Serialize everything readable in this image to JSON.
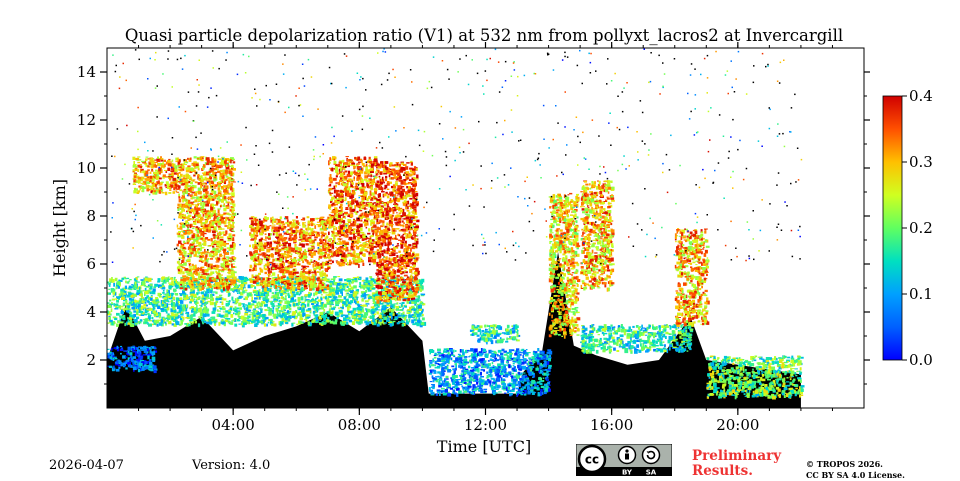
{
  "chart_data": {
    "type": "heatmap",
    "title": "Quasi particle depolarization ratio (V1) at 532 nm from pollyxt_lacros2 at Invercargill",
    "xlabel": "Time [UTC]",
    "ylabel": "Height [km]",
    "xlim": [
      0,
      24
    ],
    "ylim": [
      0,
      15
    ],
    "x_ticks": [
      {
        "value": 4,
        "label": "04:00"
      },
      {
        "value": 8,
        "label": "08:00"
      },
      {
        "value": 12,
        "label": "12:00"
      },
      {
        "value": 16,
        "label": "16:00"
      },
      {
        "value": 20,
        "label": "20:00"
      }
    ],
    "y_ticks": [
      {
        "value": 2,
        "label": "2"
      },
      {
        "value": 4,
        "label": "4"
      },
      {
        "value": 6,
        "label": "6"
      },
      {
        "value": 8,
        "label": "8"
      },
      {
        "value": 10,
        "label": "10"
      },
      {
        "value": 12,
        "label": "12"
      },
      {
        "value": 14,
        "label": "14"
      }
    ],
    "colorbar": {
      "min": 0.0,
      "max": 0.4,
      "colormap": "jet",
      "ticks": [
        {
          "value": 0.0,
          "label": "0.0"
        },
        {
          "value": 0.1,
          "label": "0.1"
        },
        {
          "value": 0.2,
          "label": "0.2"
        },
        {
          "value": 0.3,
          "label": "0.3"
        },
        {
          "value": 0.4,
          "label": "0.4"
        }
      ]
    },
    "data_end_hour": 22.0,
    "low_signal_mask": [
      [
        0,
        2.0
      ],
      [
        0.6,
        4.3
      ],
      [
        1.2,
        2.8
      ],
      [
        2,
        3.0
      ],
      [
        3,
        3.8
      ],
      [
        4,
        2.4
      ],
      [
        5,
        3.0
      ],
      [
        6,
        3.4
      ],
      [
        7,
        4.0
      ],
      [
        8,
        3.2
      ],
      [
        9,
        4.2
      ],
      [
        10,
        2.8
      ],
      [
        10.2,
        0.6
      ],
      [
        11,
        0.6
      ],
      [
        12,
        0.6
      ],
      [
        13,
        0.6
      ],
      [
        13.2,
        1.5
      ],
      [
        13.8,
        2.4
      ],
      [
        14.3,
        6.5
      ],
      [
        14.8,
        2.6
      ],
      [
        15.5,
        2.2
      ],
      [
        16.5,
        1.8
      ],
      [
        17.5,
        2.0
      ],
      [
        18.5,
        3.8
      ],
      [
        19,
        2.0
      ],
      [
        20,
        1.8
      ],
      [
        21,
        1.6
      ],
      [
        22,
        1.4
      ]
    ],
    "features": [
      {
        "name": "boundary layer aerosol",
        "t0": 0.0,
        "t1": 1.5,
        "z0": 1.6,
        "z1": 2.6,
        "value": 0.06
      },
      {
        "name": "low cloud layer",
        "t0": 0.0,
        "t1": 10.0,
        "z0": 3.5,
        "z1": 5.5,
        "value": 0.18
      },
      {
        "name": "cirrus 01-02",
        "t0": 0.8,
        "t1": 2.2,
        "z0": 9.0,
        "z1": 10.5,
        "value": 0.3
      },
      {
        "name": "cirrus 02-04",
        "t0": 2.2,
        "t1": 4.0,
        "z0": 5.0,
        "z1": 10.5,
        "value": 0.3
      },
      {
        "name": "convective cloud 05-07",
        "t0": 4.5,
        "t1": 7.0,
        "z0": 5.0,
        "z1": 8.0,
        "value": 0.32
      },
      {
        "name": "cirrus 07-08",
        "t0": 7.0,
        "t1": 8.5,
        "z0": 6.0,
        "z1": 10.5,
        "value": 0.33
      },
      {
        "name": "cirrus 08-10",
        "t0": 8.5,
        "t1": 9.8,
        "z0": 4.5,
        "z1": 10.3,
        "value": 0.35
      },
      {
        "name": "boundary layer 10-14",
        "t0": 10.2,
        "t1": 14.0,
        "z0": 0.6,
        "z1": 2.5,
        "value": 0.1
      },
      {
        "name": "shallow cloud 12-13",
        "t0": 11.5,
        "t1": 13.0,
        "z0": 2.8,
        "z1": 3.5,
        "value": 0.15
      },
      {
        "name": "tower 14-15",
        "t0": 14.0,
        "t1": 14.9,
        "z0": 3.0,
        "z1": 9.0,
        "value": 0.28
      },
      {
        "name": "low cloud 15-18",
        "t0": 15.0,
        "t1": 18.5,
        "z0": 2.4,
        "z1": 3.5,
        "value": 0.16
      },
      {
        "name": "cirrus 15-16",
        "t0": 15.0,
        "t1": 16.0,
        "z0": 5.0,
        "z1": 9.5,
        "value": 0.3
      },
      {
        "name": "cloud 18-19",
        "t0": 18.0,
        "t1": 19.0,
        "z0": 3.5,
        "z1": 7.5,
        "value": 0.3
      },
      {
        "name": "aerosol 20-22",
        "t0": 19.0,
        "t1": 22.0,
        "z0": 0.5,
        "z1": 2.2,
        "value": 0.2
      }
    ]
  },
  "footer": {
    "date": "2026-04-07",
    "version": "Version: 4.0",
    "preliminary_line1": "Preliminary",
    "preliminary_line2": "Results.",
    "copyright_line1": "© TROPOS 2026.",
    "copyright_line2": "CC BY SA 4.0 License.",
    "license_badge": {
      "text_cc": "cc",
      "text_by": "BY",
      "text_sa": "SA"
    }
  },
  "colors": {
    "no_signal": "#000000",
    "background": "#ffffff",
    "preliminary": "#ee3333"
  }
}
